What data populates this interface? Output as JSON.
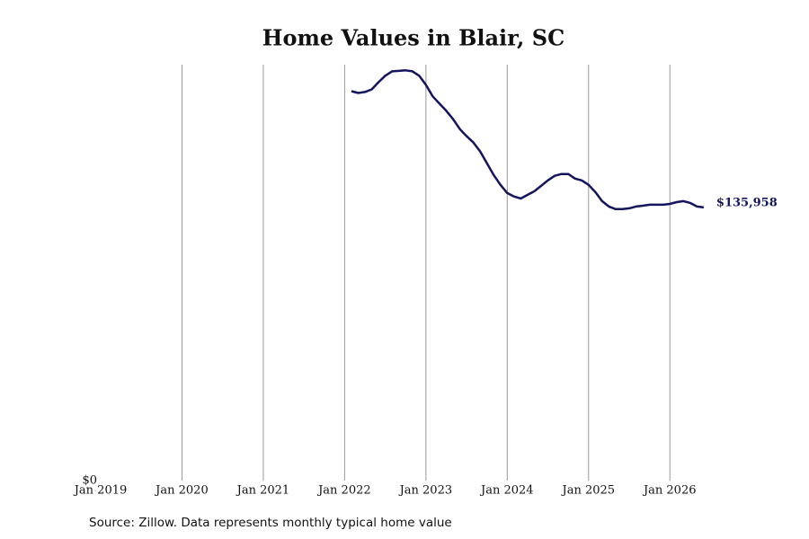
{
  "chart_data": {
    "type": "line",
    "title": "Home Values in Blair, SC",
    "source": "Source: Zillow. Data represents monthly typical home value",
    "x": [
      "2022-02",
      "2022-03",
      "2022-04",
      "2022-05",
      "2022-06",
      "2022-07",
      "2022-08",
      "2022-09",
      "2022-10",
      "2022-11",
      "2022-12",
      "2023-01",
      "2023-02",
      "2023-03",
      "2023-04",
      "2023-05",
      "2023-06",
      "2023-07",
      "2023-08",
      "2023-09",
      "2023-10",
      "2023-11",
      "2023-12",
      "2024-01",
      "2024-02",
      "2024-03",
      "2024-04",
      "2024-05",
      "2024-06",
      "2024-07",
      "2024-08",
      "2024-09",
      "2024-10",
      "2024-11",
      "2024-12",
      "2025-01",
      "2025-02",
      "2025-03",
      "2025-04",
      "2025-05",
      "2025-06",
      "2025-07",
      "2025-08",
      "2025-09",
      "2025-10",
      "2025-11",
      "2025-12",
      "2026-01",
      "2026-02",
      "2026-03",
      "2026-04",
      "2026-05",
      "2026-06"
    ],
    "series": [
      {
        "color": "#14145f",
        "values": [
          193800,
          192900,
          193400,
          194700,
          198300,
          201500,
          203700,
          203900,
          204200,
          203700,
          201500,
          197000,
          191200,
          187600,
          184000,
          179900,
          175000,
          171400,
          168300,
          163800,
          157900,
          152100,
          147200,
          143100,
          141400,
          140400,
          142200,
          144000,
          146700,
          149400,
          151700,
          152600,
          152600,
          150300,
          149400,
          147200,
          143600,
          139100,
          136400,
          135100,
          135100,
          135500,
          136400,
          136800,
          137300,
          137300,
          137300,
          137700,
          138600,
          139100,
          138200,
          136400,
          135958
        ],
        "value_labels": [
          null,
          null,
          null,
          null,
          null,
          null,
          null,
          null,
          null,
          null,
          null,
          null,
          null,
          null,
          null,
          null,
          null,
          null,
          null,
          null,
          null,
          null,
          null,
          null,
          null,
          null,
          null,
          null,
          null,
          null,
          null,
          null,
          null,
          null,
          null,
          null,
          null,
          null,
          null,
          null,
          null,
          null,
          null,
          null,
          null,
          null,
          null,
          null,
          null,
          null,
          null,
          null,
          "$135,958"
        ]
      }
    ],
    "xlim": [
      "2019-01",
      "2026-08"
    ],
    "xticks": [
      {
        "value": "2019-01",
        "label": "Jan 2019"
      },
      {
        "value": "2020-01",
        "label": "Jan 2020"
      },
      {
        "value": "2021-01",
        "label": "Jan 2021"
      },
      {
        "value": "2022-01",
        "label": "Jan 2022"
      },
      {
        "value": "2023-01",
        "label": "Jan 2023"
      },
      {
        "value": "2024-01",
        "label": "Jan 2024"
      },
      {
        "value": "2025-01",
        "label": "Jan 2025"
      },
      {
        "value": "2026-01",
        "label": "Jan 2026"
      }
    ],
    "ylim": [
      0,
      207000
    ],
    "yticks": [
      {
        "value": 0,
        "label": "$0"
      }
    ],
    "grid": true
  }
}
